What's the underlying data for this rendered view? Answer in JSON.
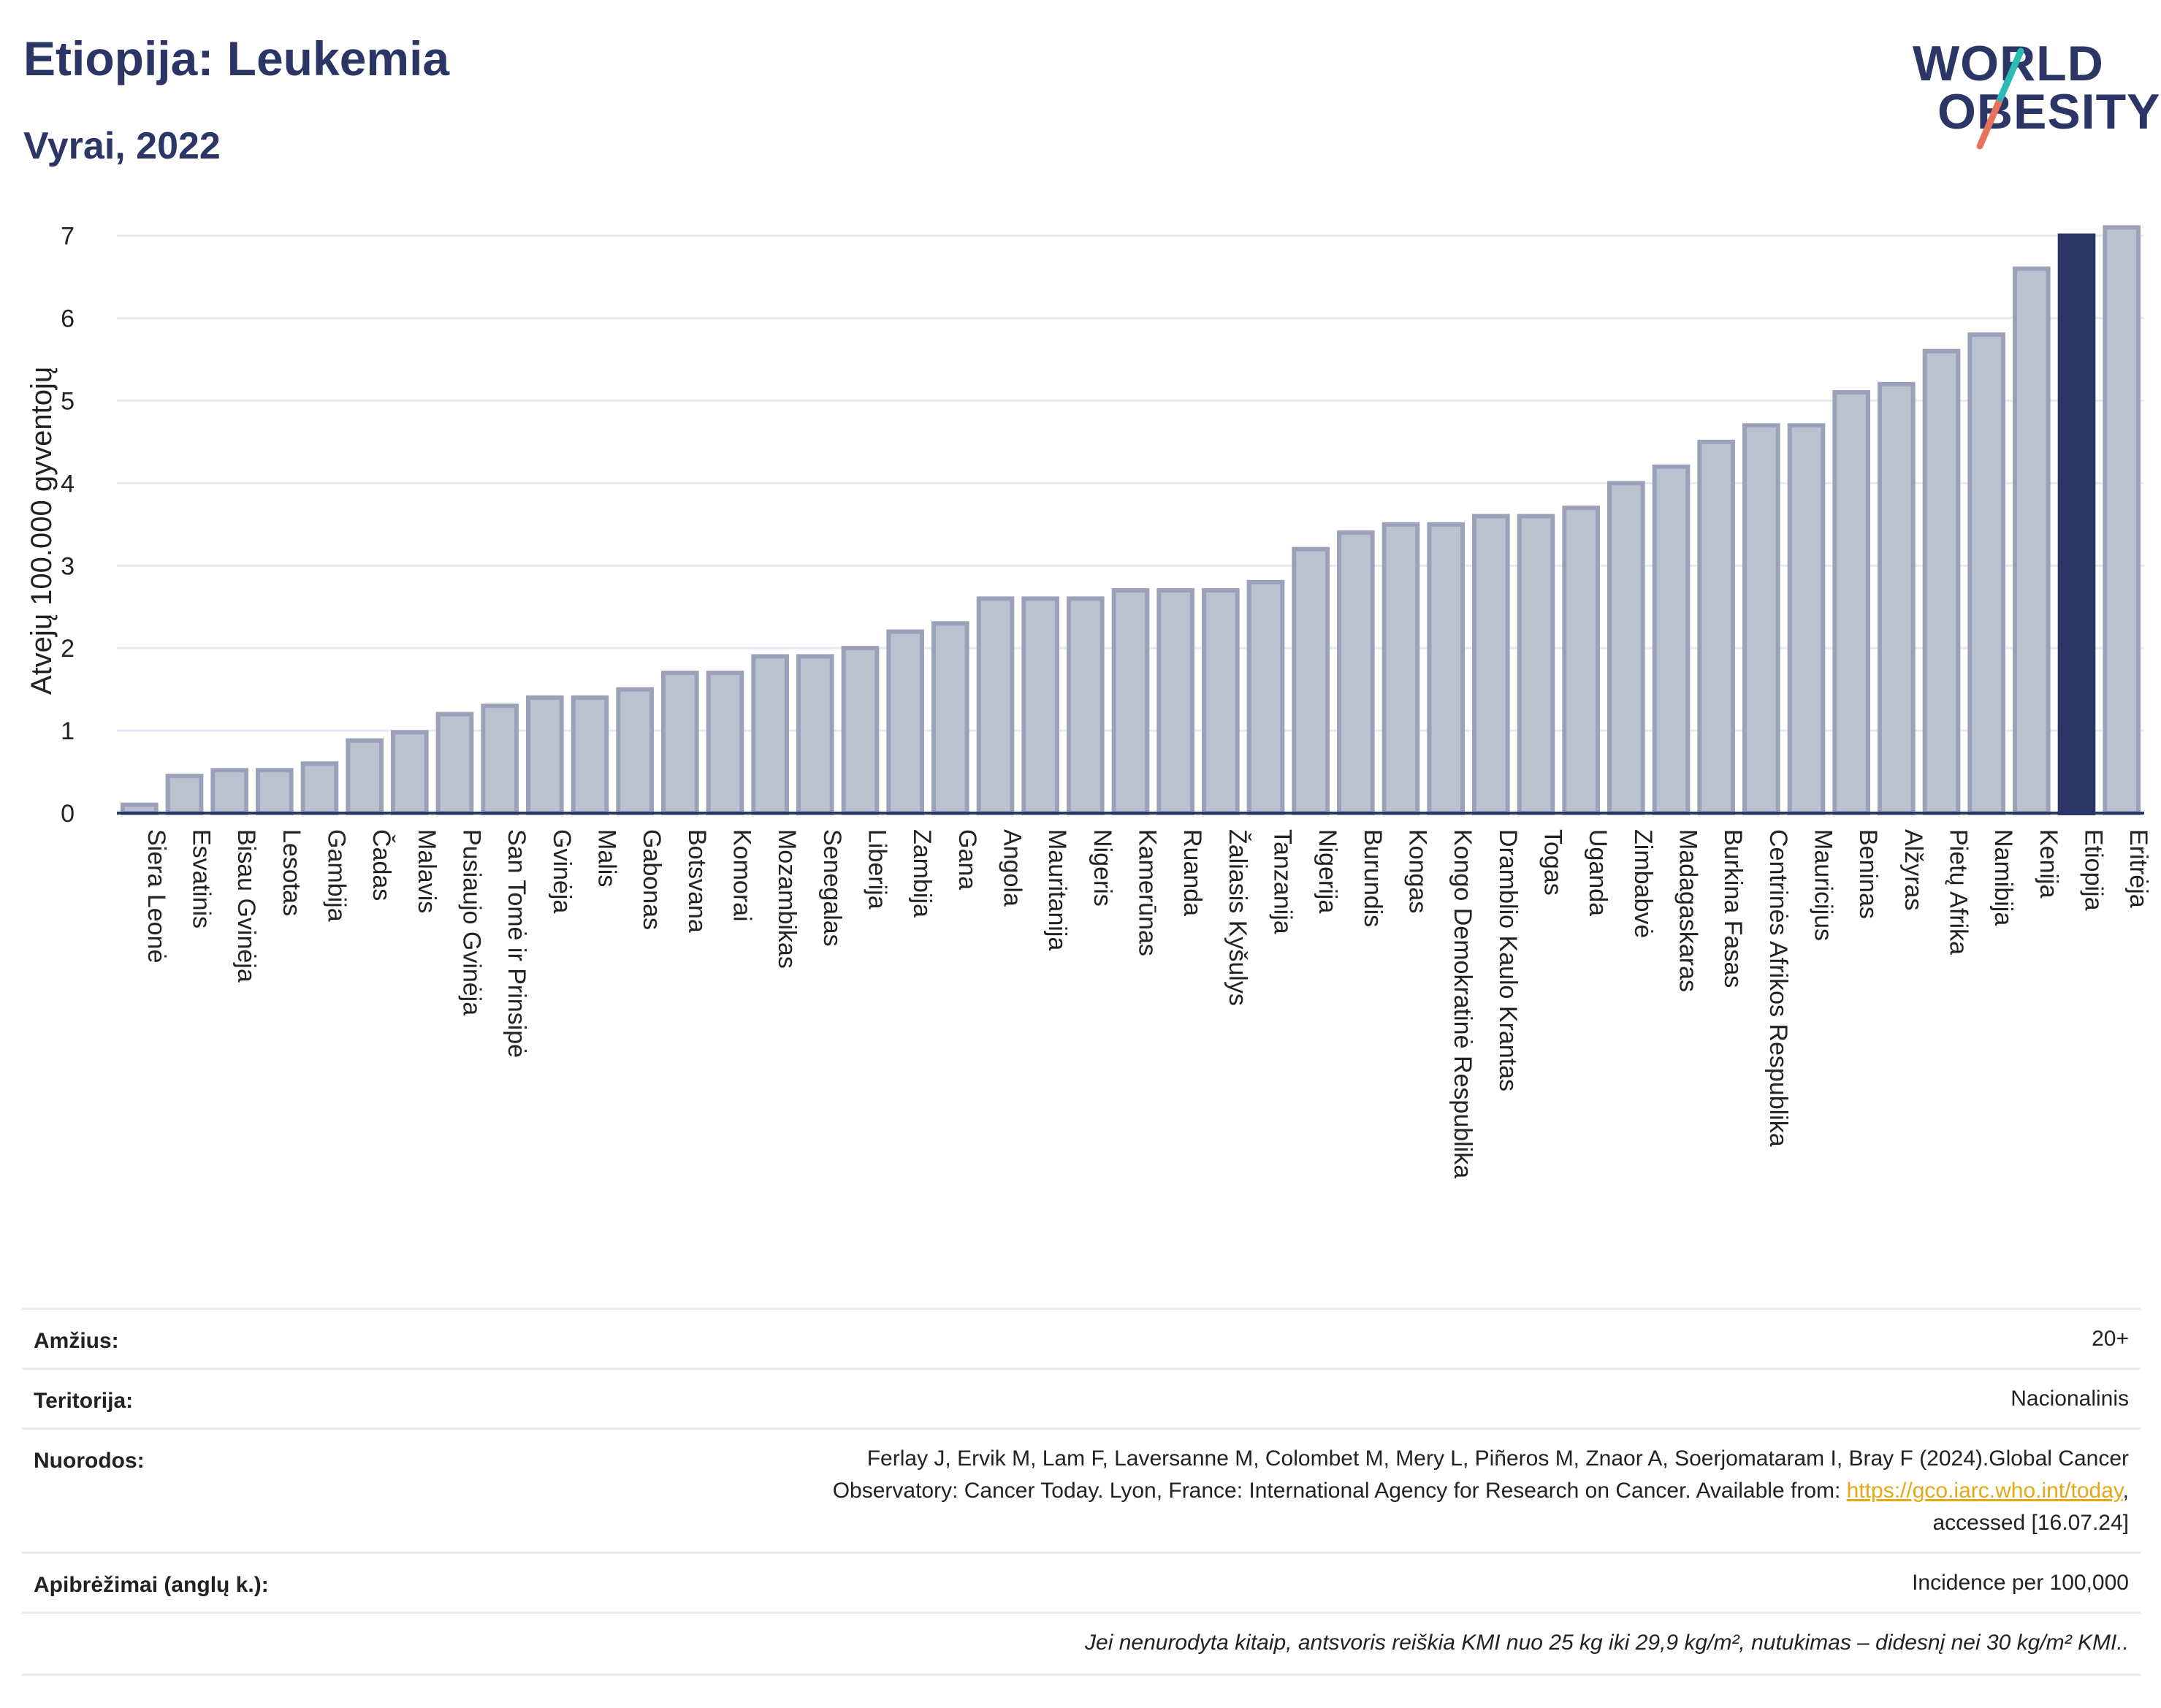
{
  "header": {
    "title": "Etiopija: Leukemia",
    "subtitle": "Vyrai, 2022"
  },
  "logo": {
    "line1": "WORLD",
    "line2": "OBESITY",
    "colors": {
      "text": "#2b3666",
      "slash_teal": "#2bbbb5",
      "slash_coral": "#e8735a"
    }
  },
  "colors": {
    "bar_fill": "#bcc1d0",
    "bar_stroke": "#9aa1b8",
    "highlight": "#2b3666",
    "grid": "#e6e9f2",
    "link": "#e6a817"
  },
  "chart_data": {
    "type": "bar",
    "title": "Etiopija: Leukemia",
    "subtitle": "Vyrai, 2022",
    "xlabel": "",
    "ylabel": "Atvejų 100.000 gyventojų",
    "ylim": [
      0,
      7.2
    ],
    "yticks": [
      0,
      1,
      2,
      3,
      4,
      5,
      6,
      7
    ],
    "grid": true,
    "highlight": "Etiopija",
    "categories": [
      "Siera Leonė",
      "Esvatinis",
      "Bisau Gvinėja",
      "Lesotas",
      "Gambija",
      "Čadas",
      "Malavis",
      "Pusiaujo Gvinėja",
      "San Tomė ir Prinsipė",
      "Gvinėja",
      "Malis",
      "Gabonas",
      "Botsvana",
      "Komorai",
      "Mozambikas",
      "Senegalas",
      "Liberija",
      "Zambija",
      "Gana",
      "Angola",
      "Mauritanija",
      "Nigeris",
      "Kamerūnas",
      "Ruanda",
      "Žaliasis Kyšulys",
      "Tanzanija",
      "Nigerija",
      "Burundis",
      "Kongas",
      "Kongo Demokratinė Respublika",
      "Dramblio Kaulo Krantas",
      "Togas",
      "Uganda",
      "Zimbabvė",
      "Madagaskaras",
      "Burkina Fasas",
      "Centrinės Afrikos Respublika",
      "Mauricijus",
      "Beninas",
      "Alžyras",
      "Pietų Afrika",
      "Namibija",
      "Kenija",
      "Etiopija",
      "Eritrėja"
    ],
    "values": [
      0.1,
      0.45,
      0.52,
      0.52,
      0.6,
      0.88,
      0.98,
      1.2,
      1.3,
      1.4,
      1.4,
      1.5,
      1.7,
      1.7,
      1.9,
      1.9,
      2.0,
      2.2,
      2.3,
      2.6,
      2.6,
      2.6,
      2.7,
      2.7,
      2.7,
      2.8,
      3.2,
      3.4,
      3.5,
      3.5,
      3.6,
      3.6,
      3.7,
      4.0,
      4.2,
      4.5,
      4.7,
      4.7,
      5.1,
      5.2,
      5.6,
      5.8,
      6.6,
      7.0,
      7.1
    ]
  },
  "meta": {
    "age_label": "Amžius:",
    "age_value": "20+",
    "territory_label": "Teritorija:",
    "territory_value": "Nacionalinis",
    "refs_label": "Nuorodos:",
    "refs_line1": "Ferlay J, Ervik M, Lam F, Laversanne M, Colombet M, Mery L, Piñeros M, Znaor A, Soerjomataram I, Bray F (2024).Global Cancer",
    "refs_line2_pre": "Observatory: Cancer Today. Lyon, France: International Agency for Research on Cancer. Available from: ",
    "refs_link": "https://gco.iarc.who.int/today",
    "refs_line2_post": ",",
    "refs_line3": "accessed [16.07.24]",
    "defs_label": "Apibrėžimai (anglų k.):",
    "defs_value": "Incidence per 100,000",
    "footnote": "Jei nenurodyta kitaip, antsvoris reiškia KMI nuo 25 kg iki 29,9 kg/m², nutukimas – didesnį nei 30 kg/m² KMI.."
  }
}
